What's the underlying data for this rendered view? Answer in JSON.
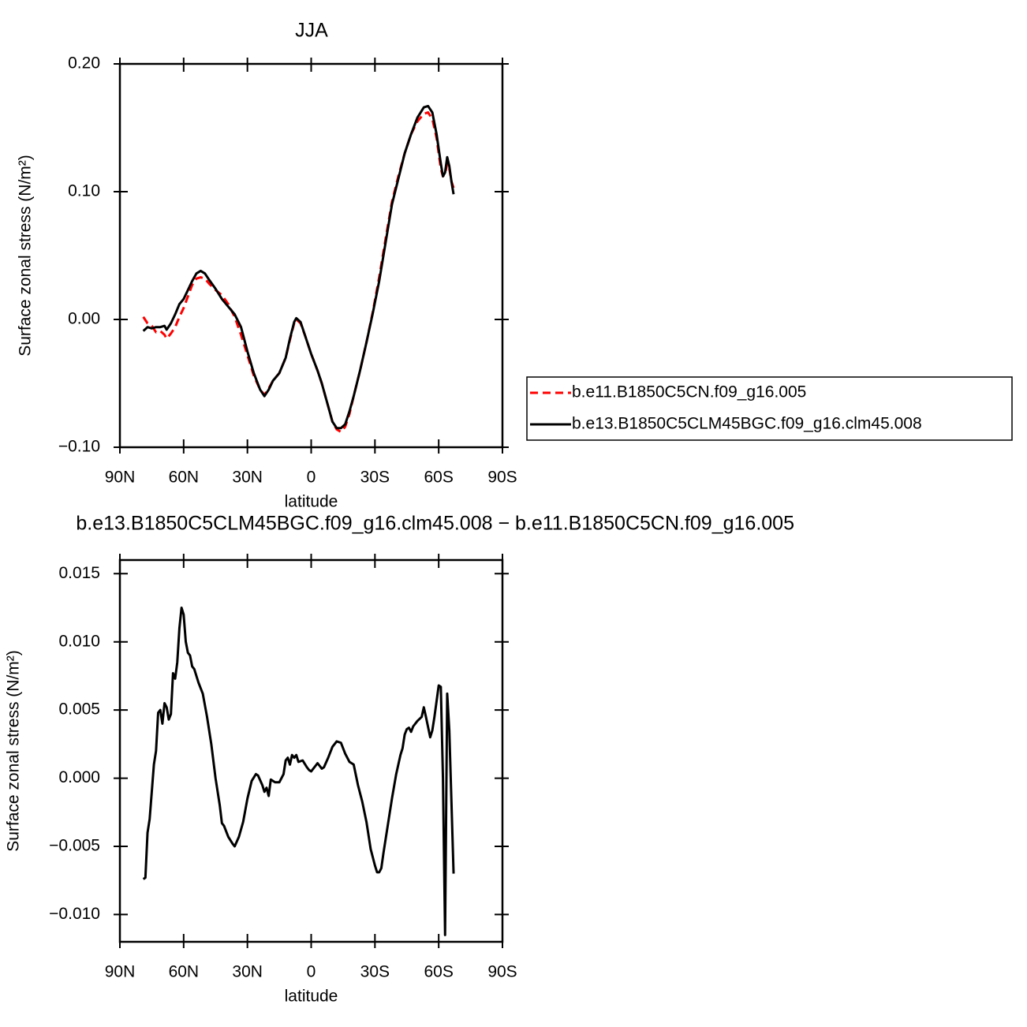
{
  "chart_data": [
    {
      "type": "line",
      "title": "JJA",
      "x_label": "latitude",
      "y_label": "Surface zonal stress (N/m²)",
      "xlim": [
        90,
        -90
      ],
      "xticks": [
        {
          "value": 90,
          "label": "90N"
        },
        {
          "value": 60,
          "label": "60N"
        },
        {
          "value": 30,
          "label": "30N"
        },
        0,
        {
          "value": -30,
          "label": "30S"
        },
        {
          "value": -60,
          "label": "60S"
        },
        {
          "value": -90,
          "label": "90S"
        }
      ],
      "ylim": [
        -0.1,
        0.2
      ],
      "yticks": [
        {
          "value": -0.1,
          "label": "−0.10"
        },
        {
          "value": 0,
          "label": "0.00"
        },
        {
          "value": 0.1,
          "label": "0.10"
        },
        {
          "value": 0.2,
          "label": "0.20"
        }
      ],
      "legend": "right",
      "x": [
        79,
        77,
        75,
        73,
        71,
        69,
        68,
        66,
        64,
        62,
        60,
        58,
        56,
        54,
        52,
        50,
        48,
        45,
        42,
        39,
        36,
        33,
        30,
        27,
        24,
        22,
        20,
        18,
        15,
        12,
        10,
        8,
        7,
        5,
        3,
        0,
        -3,
        -5,
        -8,
        -10,
        -12,
        -14,
        -16,
        -18,
        -20,
        -23,
        -26,
        -29,
        -32,
        -35,
        -38,
        -41,
        -44,
        -47,
        -50,
        -53,
        -55,
        -57,
        -59,
        -61,
        -62,
        -63,
        -64,
        -65,
        -66,
        -67
      ],
      "series": [
        {
          "name": "b.e11.B1850C5CN.f09_g16.005",
          "color": "#ff0000",
          "dashed": true,
          "values": [
            0.002,
            -0.003,
            -0.005,
            -0.01,
            -0.009,
            -0.012,
            -0.015,
            -0.011,
            -0.006,
            0.002,
            0.009,
            0.018,
            0.027,
            0.032,
            0.033,
            0.032,
            0.028,
            0.023,
            0.019,
            0.012,
            0.002,
            -0.012,
            -0.028,
            -0.044,
            -0.055,
            -0.059,
            -0.054,
            -0.048,
            -0.042,
            -0.03,
            -0.016,
            -0.003,
            0,
            -0.003,
            -0.012,
            -0.027,
            -0.04,
            -0.05,
            -0.068,
            -0.08,
            -0.086,
            -0.088,
            -0.084,
            -0.074,
            -0.06,
            -0.04,
            -0.018,
            0.006,
            0.033,
            0.063,
            0.092,
            0.112,
            0.13,
            0.145,
            0.155,
            0.161,
            0.162,
            0.157,
            0.142,
            0.118,
            0.112,
            0.114,
            0.122,
            0.118,
            0.108,
            0.103
          ]
        },
        {
          "name": "b.e13.B1850C5CLM45BGC.f09_g16.clm45.008",
          "color": "#000000",
          "dashed": false,
          "values": [
            -0.009,
            -0.006,
            -0.007,
            -0.006,
            -0.006,
            -0.005,
            -0.008,
            -0.003,
            0.004,
            0.012,
            0.016,
            0.023,
            0.03,
            0.036,
            0.038,
            0.036,
            0.031,
            0.024,
            0.016,
            0.01,
            0.004,
            -0.006,
            -0.025,
            -0.042,
            -0.055,
            -0.06,
            -0.055,
            -0.048,
            -0.042,
            -0.03,
            -0.015,
            -0.002,
            0.001,
            -0.002,
            -0.012,
            -0.027,
            -0.04,
            -0.05,
            -0.068,
            -0.08,
            -0.085,
            -0.085,
            -0.082,
            -0.072,
            -0.06,
            -0.04,
            -0.018,
            0.005,
            0.03,
            0.06,
            0.09,
            0.11,
            0.13,
            0.145,
            0.158,
            0.166,
            0.167,
            0.162,
            0.145,
            0.122,
            0.112,
            0.115,
            0.127,
            0.12,
            0.108,
            0.098
          ]
        }
      ]
    },
    {
      "type": "line",
      "title": "b.e13.B1850C5CLM45BGC.f09_g16.clm45.008 − b.e11.B1850C5CN.f09_g16.005",
      "x_label": "latitude",
      "y_label": "Surface zonal stress (N/m²)",
      "xlim": [
        90,
        -90
      ],
      "xticks": [
        {
          "value": 90,
          "label": "90N"
        },
        {
          "value": 60,
          "label": "60N"
        },
        {
          "value": 30,
          "label": "30N"
        },
        0,
        {
          "value": -30,
          "label": "30S"
        },
        {
          "value": -60,
          "label": "60S"
        },
        {
          "value": -90,
          "label": "90S"
        }
      ],
      "ylim": [
        -0.012,
        0.016
      ],
      "yticks": [
        {
          "value": -0.01,
          "label": "−0.010"
        },
        {
          "value": -0.005,
          "label": "−0.005"
        },
        {
          "value": 0,
          "label": "0.000"
        },
        {
          "value": 0.005,
          "label": "0.005"
        },
        {
          "value": 0.01,
          "label": "0.010"
        },
        {
          "value": 0.015,
          "label": "0.015"
        }
      ],
      "color": "#000000",
      "x": [
        79,
        78,
        77,
        76,
        75,
        74,
        73,
        72,
        71,
        70,
        69,
        68,
        67,
        66,
        65,
        64,
        63,
        62,
        61,
        60,
        59,
        58,
        57,
        56,
        55,
        53,
        51,
        49,
        47,
        45,
        43,
        42,
        41,
        39,
        37,
        36,
        34,
        32,
        30,
        28,
        26,
        25,
        23,
        22,
        21,
        20,
        19,
        17,
        15,
        13,
        12,
        11,
        10,
        9,
        8,
        7,
        6,
        4,
        2,
        1,
        0,
        -2,
        -3,
        -4,
        -5,
        -6,
        -8,
        -10,
        -12,
        -14,
        -16,
        -18,
        -20,
        -22,
        -24,
        -26,
        -28,
        -30,
        -31,
        -32,
        -33,
        -34,
        -36,
        -38,
        -40,
        -42,
        -43,
        -44,
        -45,
        -46,
        -47,
        -48,
        -50,
        -52,
        -53,
        -54,
        -56,
        -57,
        -58,
        -60,
        -61,
        -62,
        -63,
        -64,
        -65,
        -67
      ],
      "values": [
        -0.0074,
        -0.0073,
        -0.004,
        -0.003,
        -0.001,
        0.001,
        0.002,
        0.0048,
        0.005,
        0.004,
        0.0055,
        0.0052,
        0.0043,
        0.0047,
        0.0077,
        0.0073,
        0.0085,
        0.011,
        0.0125,
        0.012,
        0.01,
        0.0092,
        0.009,
        0.0082,
        0.008,
        0.007,
        0.0062,
        0.0045,
        0.0025,
        0,
        -0.002,
        -0.0033,
        -0.0035,
        -0.0043,
        -0.0048,
        -0.005,
        -0.0043,
        -0.0032,
        -0.0015,
        -0.0002,
        0.0003,
        0.0002,
        -0.0005,
        -0.001,
        -0.0007,
        -0.0013,
        -0.0001,
        -0.0003,
        -0.0003,
        0.0003,
        0.0013,
        0.0015,
        0.001,
        0.0017,
        0.0015,
        0.0017,
        0.0012,
        0.0013,
        0.0008,
        0.0006,
        0.0005,
        0.0009,
        0.0011,
        0.0009,
        0.0007,
        0.0008,
        0.0015,
        0.0023,
        0.0027,
        0.0026,
        0.0018,
        0.0012,
        0.001,
        -0.0005,
        -0.0017,
        -0.0032,
        -0.0052,
        -0.0064,
        -0.0069,
        -0.0069,
        -0.0066,
        -0.0055,
        -0.0035,
        -0.0015,
        0.0003,
        0.0017,
        0.0022,
        0.0032,
        0.0036,
        0.0037,
        0.0034,
        0.0038,
        0.0042,
        0.0045,
        0.0052,
        0.0045,
        0.003,
        0.0035,
        0.0045,
        0.0068,
        0.0067,
        0,
        -0.0115,
        0.0062,
        0.0035,
        -0.007
      ]
    }
  ]
}
